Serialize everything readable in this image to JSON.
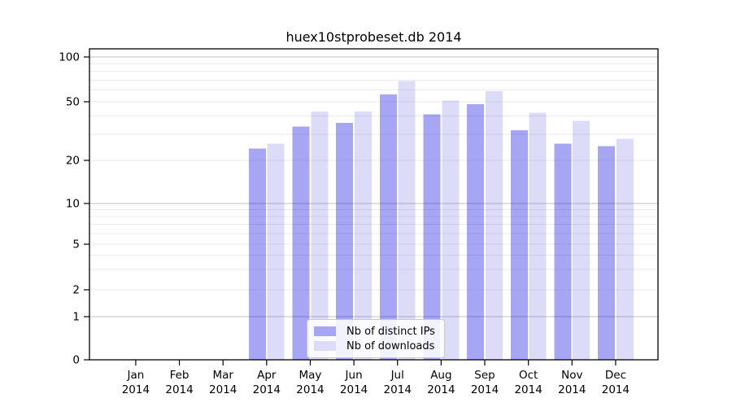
{
  "title": "huex10stprobeset.db 2014",
  "colors": {
    "distinct_ips_bar": "#a6a6f5",
    "downloads_bar": "#dcdcf8",
    "axis": "#000000",
    "background": "#ffffff"
  },
  "legend": {
    "items": [
      {
        "label": "Nb of distinct IPs",
        "color": "#a6a6f5"
      },
      {
        "label": "Nb of downloads",
        "color": "#dcdcf8"
      }
    ]
  },
  "x_axis": {
    "months": [
      "Jan",
      "Feb",
      "Mar",
      "Apr",
      "May",
      "Jun",
      "Jul",
      "Aug",
      "Sep",
      "Oct",
      "Nov",
      "Dec"
    ],
    "year": "2014"
  },
  "y_axis": {
    "scale": "log",
    "tick_labels": [
      "100",
      "50",
      "20",
      "10",
      "5",
      "2",
      "1",
      "0"
    ],
    "tick_values": [
      100,
      50,
      20,
      10,
      5,
      2,
      1,
      0
    ]
  },
  "chart_data": {
    "type": "bar",
    "title": "huex10stprobeset.db 2014",
    "categories": [
      "Jan 2014",
      "Feb 2014",
      "Mar 2014",
      "Apr 2014",
      "May 2014",
      "Jun 2014",
      "Jul 2014",
      "Aug 2014",
      "Sep 2014",
      "Oct 2014",
      "Nov 2014",
      "Dec 2014"
    ],
    "series": [
      {
        "name": "Nb of distinct IPs",
        "color": "#a6a6f5",
        "values": [
          0,
          0,
          0,
          24,
          34,
          36,
          56,
          41,
          48,
          32,
          26,
          25
        ]
      },
      {
        "name": "Nb of downloads",
        "color": "#dcdcf8",
        "values": [
          0,
          0,
          0,
          26,
          43,
          43,
          69,
          51,
          59,
          42,
          37,
          28
        ]
      }
    ],
    "yscale": "log",
    "ylim": [
      0,
      110
    ],
    "yticks": [
      100,
      50,
      20,
      10,
      5,
      2,
      1,
      0
    ],
    "grid": true,
    "legend_position": "bottom-center"
  }
}
